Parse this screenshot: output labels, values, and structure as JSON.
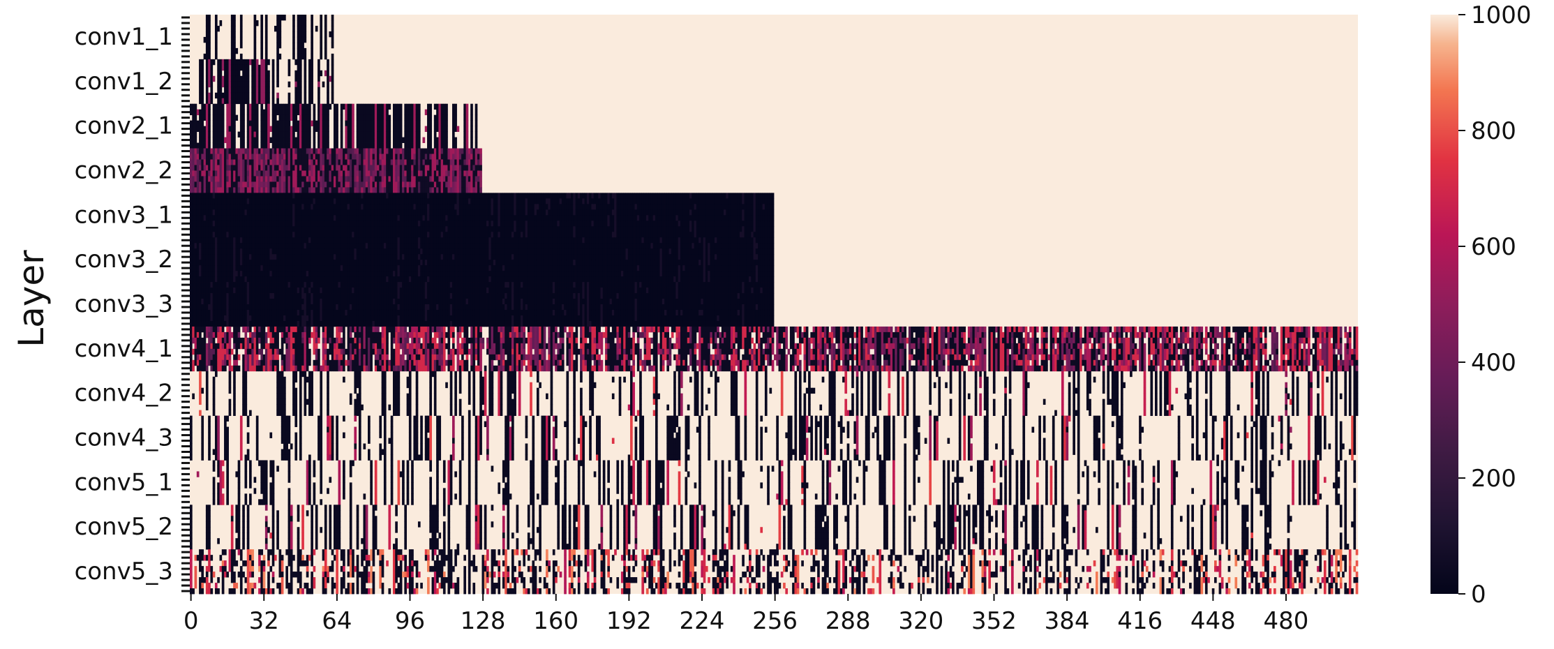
{
  "chart_data": {
    "type": "heatmap",
    "title": "",
    "xlabel": "",
    "ylabel": "Layer",
    "rows": [
      "conv1_1",
      "conv1_2",
      "conv2_1",
      "conv2_2",
      "conv3_1",
      "conv3_2",
      "conv3_3",
      "conv4_1",
      "conv4_2",
      "conv4_3",
      "conv5_1",
      "conv5_2",
      "conv5_3"
    ],
    "x_ticks": [
      0,
      32,
      64,
      96,
      128,
      160,
      192,
      224,
      256,
      288,
      320,
      352,
      384,
      416,
      448,
      480
    ],
    "x_range": [
      0,
      512
    ],
    "channels_per_row": [
      64,
      64,
      128,
      128,
      256,
      256,
      256,
      512,
      512,
      512,
      512,
      512,
      512
    ],
    "row_patterns": [
      {
        "layer": "conv1_1",
        "pattern": "sparse-dark"
      },
      {
        "layer": "conv1_2",
        "pattern": "mixed-dark"
      },
      {
        "layer": "conv2_1",
        "pattern": "mostly-dark"
      },
      {
        "layer": "conv2_2",
        "pattern": "dark-magenta"
      },
      {
        "layer": "conv3_1",
        "pattern": "near-zero"
      },
      {
        "layer": "conv3_2",
        "pattern": "near-zero"
      },
      {
        "layer": "conv3_3",
        "pattern": "near-zero"
      },
      {
        "layer": "conv4_1",
        "pattern": "dark-magenta-mixed"
      },
      {
        "layer": "conv4_2",
        "pattern": "mostly-light"
      },
      {
        "layer": "conv4_3",
        "pattern": "mostly-light"
      },
      {
        "layer": "conv5_1",
        "pattern": "mostly-light"
      },
      {
        "layer": "conv5_2",
        "pattern": "mostly-light"
      },
      {
        "layer": "conv5_3",
        "pattern": "speckled"
      }
    ],
    "fill_value": 1000,
    "colorbar": {
      "colormap": "rocket",
      "range": [
        0,
        1000
      ],
      "ticks": [
        0,
        200,
        400,
        600,
        800,
        1000
      ]
    }
  }
}
